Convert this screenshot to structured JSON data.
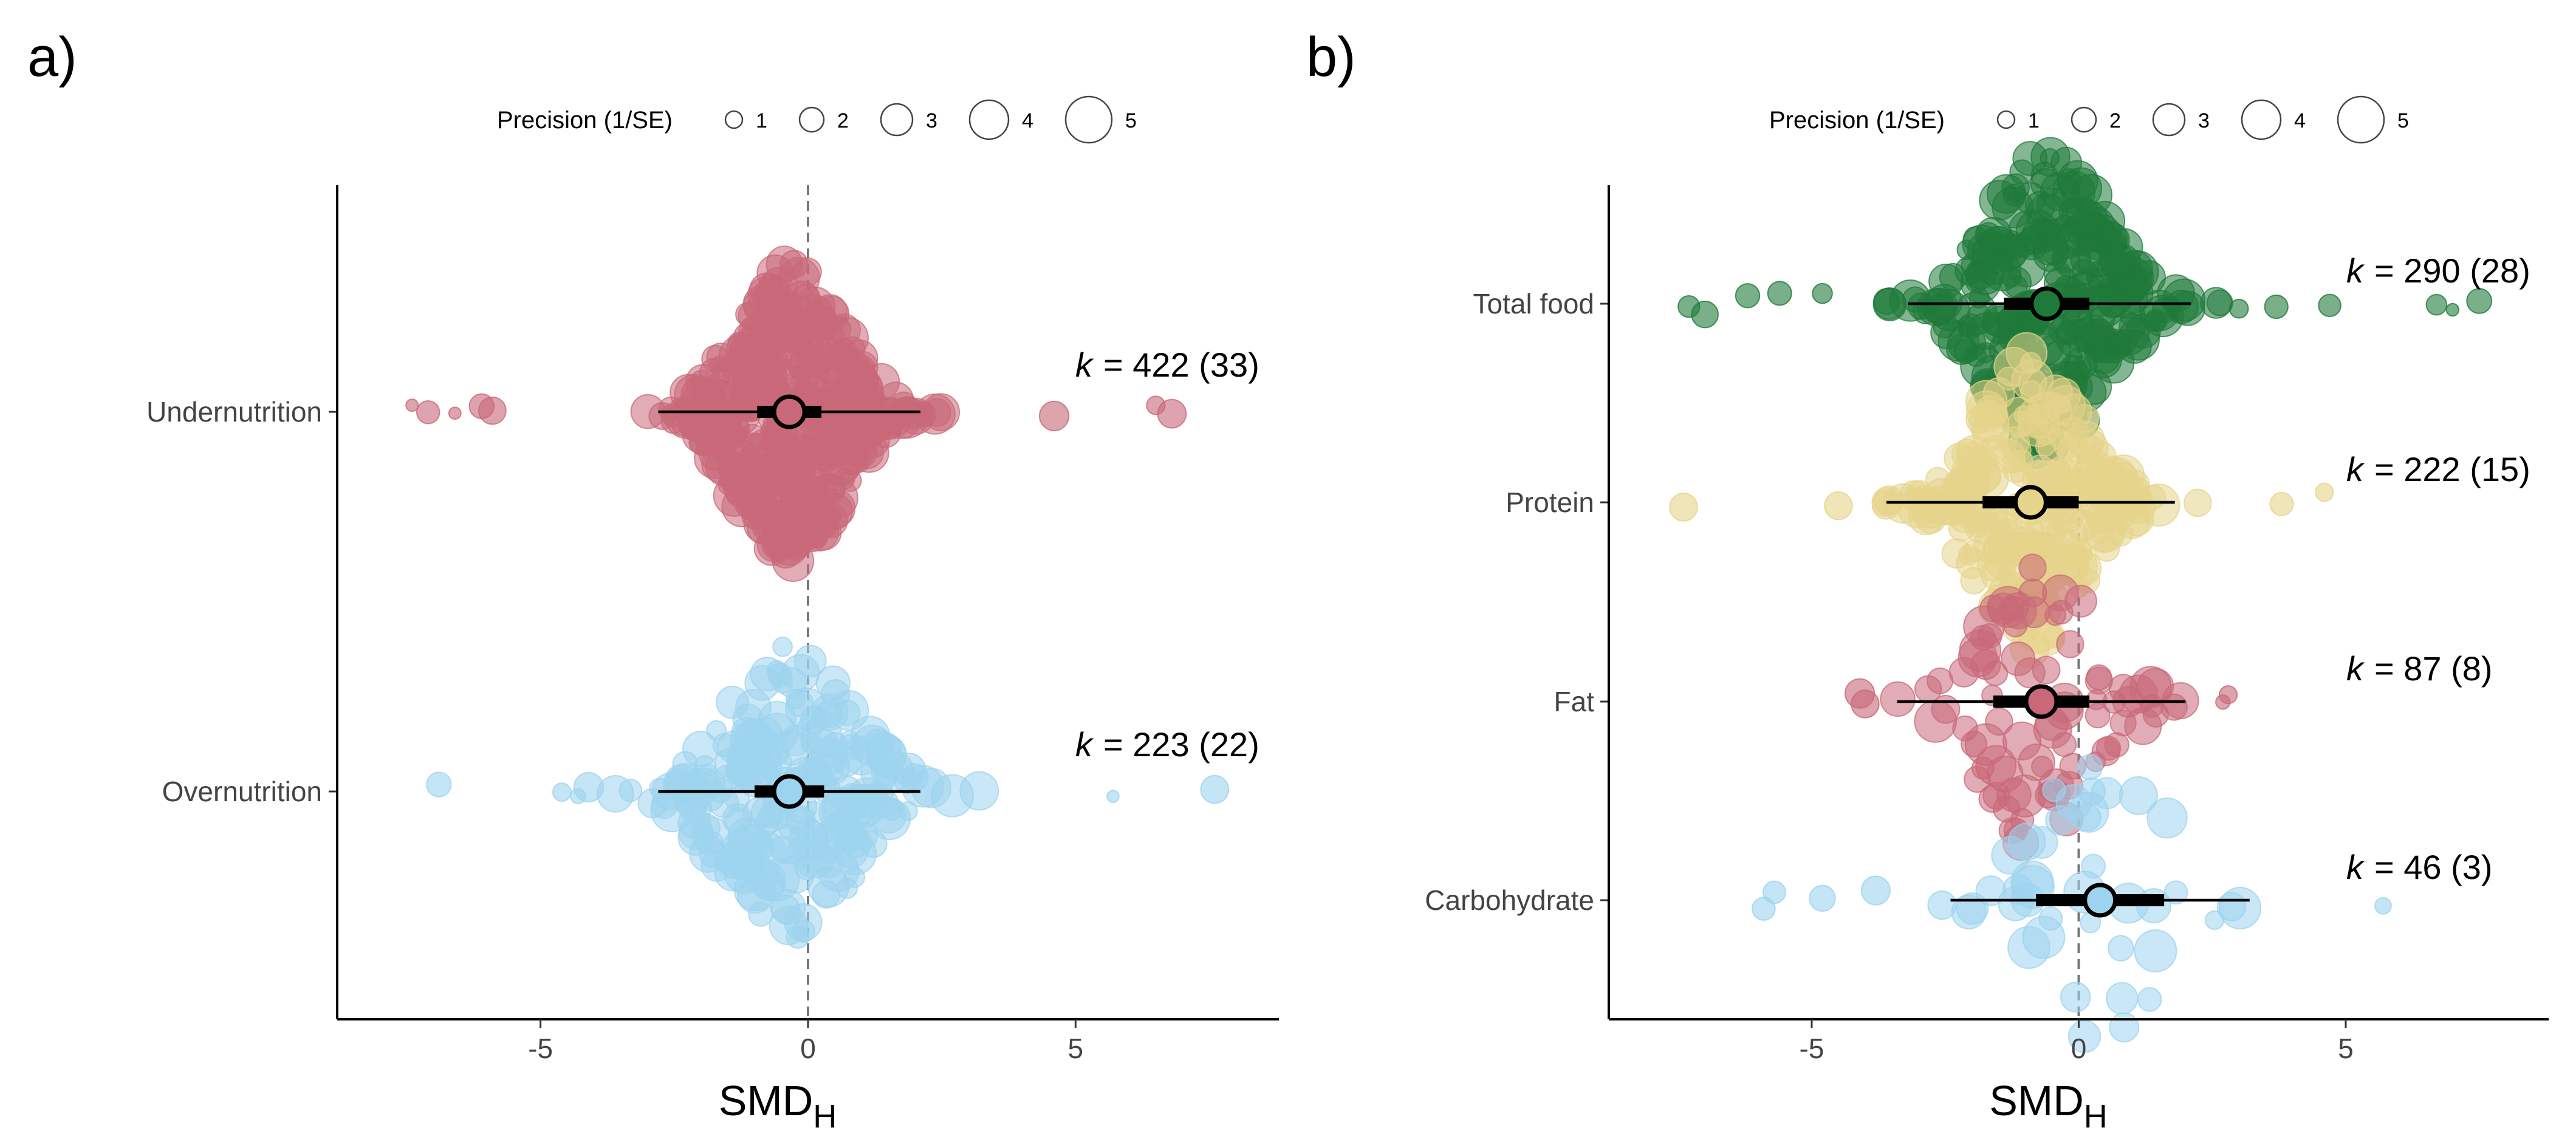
{
  "colors": {
    "undernutrition": "#C86878",
    "overnutrition": "#9CD3EE",
    "total_food": "#1F7A3A",
    "protein": "#E6D48A",
    "fat": "#C86878",
    "carbohydrate": "#9CD3EE",
    "axis": "#000000",
    "reference_line": "#777777"
  },
  "legend": {
    "title": "Precision (1/SE)",
    "sizes": [
      "1",
      "2",
      "3",
      "4",
      "5"
    ]
  },
  "chart_data": [
    {
      "panel_label": "a)",
      "type": "scatter",
      "orientation": "horizontal",
      "xlabel_main": "SMD",
      "xlabel_sub": "H",
      "xlim": [
        -8.8,
        8.8
      ],
      "xticks": [
        -5,
        0,
        5
      ],
      "xtick_labels": [
        "-5",
        "0",
        "5"
      ],
      "reference_line": 0,
      "legend_placement": "top",
      "categories": [
        {
          "name": "Undernutrition",
          "color_key": "undernutrition",
          "k_label": "k",
          "k_value": "= 422 (33)",
          "estimate": -0.35,
          "ci95": [
            -0.95,
            0.25
          ],
          "pi": [
            -2.8,
            2.1
          ],
          "n_points": 422,
          "spread": 1.0,
          "outliers": [
            -7.4,
            -7.1,
            -6.6,
            -6.1,
            -5.9,
            4.6,
            6.5,
            6.8
          ]
        },
        {
          "name": "Overnutrition",
          "color_key": "overnutrition",
          "k_label": "k",
          "k_value": "= 223 (22)",
          "estimate": -0.35,
          "ci95": [
            -1.0,
            0.3
          ],
          "pi": [
            -2.8,
            2.1
          ],
          "n_points": 223,
          "spread": 1.2,
          "outliers": [
            -6.9,
            -4.6,
            -4.3,
            -4.1,
            5.7,
            7.6
          ]
        }
      ]
    },
    {
      "panel_label": "b)",
      "type": "scatter",
      "orientation": "horizontal",
      "xlabel_main": "SMD",
      "xlabel_sub": "H",
      "xlim": [
        -8.8,
        8.8
      ],
      "xticks": [
        -5,
        0,
        5
      ],
      "xtick_labels": [
        "-5",
        "0",
        "5"
      ],
      "reference_line": 0,
      "legend_placement": "top",
      "categories": [
        {
          "name": "Total food",
          "color_key": "total_food",
          "k_label": "k",
          "k_value": "= 290 (28)",
          "estimate": -0.6,
          "ci95": [
            -1.4,
            0.2
          ],
          "pi": [
            -3.2,
            2.1
          ],
          "n_points": 290,
          "spread": 1.1,
          "outliers": [
            -7.3,
            -7.0,
            -6.2,
            -5.6,
            -4.8,
            3.0,
            3.7,
            4.7,
            6.7,
            7.0,
            7.5
          ]
        },
        {
          "name": "Protein",
          "color_key": "protein",
          "k_label": "k",
          "k_value": "= 222 (15)",
          "estimate": -0.9,
          "ci95": [
            -1.8,
            0.0
          ],
          "pi": [
            -3.6,
            1.8
          ],
          "n_points": 222,
          "spread": 1.0,
          "outliers": [
            -7.4,
            -4.5,
            3.8,
            4.6
          ]
        },
        {
          "name": "Fat",
          "color_key": "fat",
          "k_label": "k",
          "k_value": "= 87 (8)",
          "estimate": -0.7,
          "ci95": [
            -1.6,
            0.2
          ],
          "pi": [
            -3.4,
            2.0
          ],
          "n_points": 87,
          "spread": 1.1,
          "outliers": [
            -4.1,
            -4.0,
            2.7,
            2.8
          ]
        },
        {
          "name": "Carbohydrate",
          "color_key": "carbohydrate",
          "k_label": "k",
          "k_value": "= 46 (3)",
          "estimate": 0.4,
          "ci95": [
            -0.8,
            1.6
          ],
          "pi": [
            -2.4,
            3.2
          ],
          "n_points": 46,
          "spread": 1.2,
          "outliers": [
            -5.9,
            -5.7,
            -4.8,
            -3.8,
            5.7
          ]
        }
      ]
    }
  ]
}
